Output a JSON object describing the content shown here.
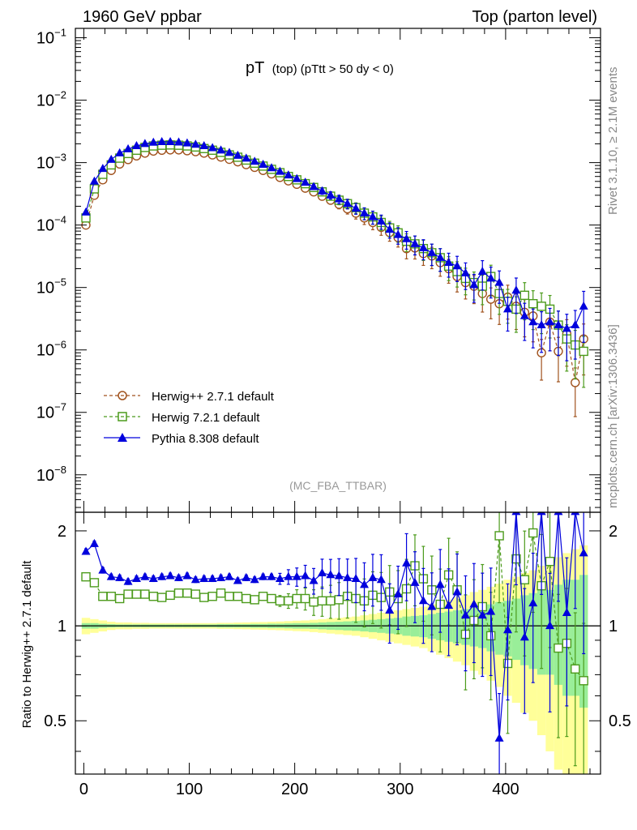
{
  "header": {
    "left": "1960 GeV ppbar",
    "right": "Top (parton level)"
  },
  "side_labels": {
    "rivet": "Rivet 3.1.10, ≥ 2.1M events",
    "mcplots": "mcplots.cern.ch [arXiv:1306.3436]"
  },
  "colors": {
    "herwig_pp": "#a0521d",
    "herwig7": "#4c9b1c",
    "pythia": "#0000dd",
    "band_inner": "#99ee99",
    "band_outer": "#ffff99"
  },
  "chart_data": [
    {
      "type": "line",
      "panel": "main",
      "title_main": "pT",
      "title_sub": "(top)  (pTtt > 50 dy < 0)",
      "watermark": "(MC_FBA_TTBAR)",
      "xlim": [
        -8,
        490
      ],
      "ylim_log10": [
        -8.6,
        -0.85
      ],
      "y_scale": "log",
      "y_tick_exponents": [
        -1,
        -2,
        -3,
        -4,
        -5,
        -6,
        -7,
        -8
      ],
      "legend_position": "bottom-left",
      "legend": [
        "Herwig++ 2.7.1 default",
        "Herwig 7.2.1 default",
        "Pythia 8.308 default"
      ],
      "x": [
        2,
        10,
        18,
        26,
        34,
        42,
        50,
        58,
        66,
        74,
        82,
        90,
        98,
        106,
        114,
        122,
        130,
        138,
        146,
        154,
        162,
        170,
        178,
        186,
        194,
        202,
        210,
        218,
        226,
        234,
        242,
        250,
        258,
        266,
        274,
        282,
        290,
        298,
        306,
        314,
        322,
        330,
        338,
        346,
        354,
        362,
        370,
        378,
        386,
        394,
        402,
        410,
        418,
        426,
        434,
        442,
        450,
        458,
        466,
        474
      ],
      "series": [
        {
          "name": "Herwig++ 2.7.1 default",
          "marker": "open-circle",
          "values": [
            0.0001,
            0.0003,
            0.00053,
            0.00075,
            0.00095,
            0.00112,
            0.00128,
            0.00142,
            0.00153,
            0.00158,
            0.0016,
            0.0016,
            0.00155,
            0.0015,
            0.00142,
            0.00133,
            0.00123,
            0.00113,
            0.00103,
            0.00093,
            0.00084,
            0.00075,
            0.00066,
            0.00058,
            0.00051,
            0.00045,
            0.00039,
            0.00034,
            0.00029,
            0.00025,
            0.000215,
            0.000182,
            0.000155,
            0.00013,
            0.00011,
            9.2e-05,
            7.6e-05,
            6.3e-05,
            4.2e-05,
            4.3e-05,
            3.5e-05,
            3.2e-05,
            2.5e-05,
            2e-05,
            1.5e-05,
            1.2e-05,
            1.05e-05,
            8e-06,
            6.5e-06,
            5.5e-06,
            7e-06,
            5e-06,
            4e-06,
            3.5e-06,
            9e-07,
            2.8e-06,
            9.5e-07,
            1.8e-06,
            3e-07,
            1.5e-06
          ]
        },
        {
          "name": "Herwig 7.2.1 default",
          "marker": "open-square",
          "values": [
            0.00013,
            0.00038,
            0.00065,
            0.00092,
            0.00118,
            0.0014,
            0.00158,
            0.00175,
            0.00185,
            0.0019,
            0.00192,
            0.0019,
            0.00185,
            0.00178,
            0.00168,
            0.00158,
            0.00146,
            0.00133,
            0.00122,
            0.0011,
            0.00098,
            0.00088,
            0.00078,
            0.00069,
            0.0006,
            0.00053,
            0.00046,
            0.0004,
            0.00034,
            0.00029,
            0.00025,
            0.00022,
            0.00019,
            0.000155,
            0.000135,
            0.00011,
            9e-05,
            7.5e-05,
            5.5e-05,
            5e-05,
            4.2e-05,
            3.6e-05,
            3e-05,
            2.2e-05,
            1.8e-05,
            1.4e-05,
            1.2e-05,
            1.05e-05,
            1.5e-05,
            8e-06,
            6e-06,
            4.5e-06,
            7.5e-06,
            5.5e-06,
            5e-06,
            4.5e-06,
            2.5e-06,
            1.5e-06,
            1.2e-06,
            9.5e-07
          ]
        },
        {
          "name": "Pythia 8.308 default",
          "marker": "filled-triangle",
          "values": [
            0.00016,
            0.0005,
            0.0008,
            0.00112,
            0.00142,
            0.00165,
            0.00185,
            0.002,
            0.0021,
            0.00215,
            0.00215,
            0.00212,
            0.00205,
            0.00195,
            0.00185,
            0.00172,
            0.00158,
            0.00144,
            0.0013,
            0.00117,
            0.00104,
            0.00093,
            0.00082,
            0.00072,
            0.00063,
            0.00055,
            0.00048,
            0.00041,
            0.00035,
            0.0003,
            0.00026,
            0.00022,
            0.000185,
            0.000155,
            0.000135,
            0.000115,
            8.5e-05,
            7e-05,
            6e-05,
            5e-05,
            4.3e-05,
            3.6e-05,
            3e-05,
            2.5e-05,
            2.2e-05,
            1.7e-05,
            1.1e-05,
            1.8e-05,
            1.4e-05,
            1.2e-05,
            4.5e-06,
            9e-06,
            3.5e-06,
            2.8e-06,
            2.5e-06,
            2.8e-06,
            2.5e-06,
            2.2e-06,
            2.5e-06,
            5e-06
          ]
        }
      ]
    },
    {
      "type": "line",
      "panel": "ratio",
      "ylabel": "Ratio to Herwig++ 2.7.1 default",
      "xlim": [
        -8,
        490
      ],
      "ylim_log10": [
        -0.47,
        0.36
      ],
      "y_scale": "log",
      "y_ticks": [
        0.5,
        1,
        2
      ],
      "x_ticks": [
        0,
        100,
        200,
        300,
        400
      ],
      "reference_line": 1,
      "x": [
        2,
        10,
        18,
        26,
        34,
        42,
        50,
        58,
        66,
        74,
        82,
        90,
        98,
        106,
        114,
        122,
        130,
        138,
        146,
        154,
        162,
        170,
        178,
        186,
        194,
        202,
        210,
        218,
        226,
        234,
        242,
        250,
        258,
        266,
        274,
        282,
        290,
        298,
        306,
        314,
        322,
        330,
        338,
        346,
        354,
        362,
        370,
        378,
        386,
        394,
        402,
        410,
        418,
        426,
        434,
        442,
        450,
        458,
        466,
        474
      ],
      "uncertainty_inner": [
        0.02,
        0.02,
        0.015,
        0.012,
        0.01,
        0.01,
        0.01,
        0.01,
        0.01,
        0.01,
        0.01,
        0.01,
        0.01,
        0.01,
        0.01,
        0.01,
        0.012,
        0.012,
        0.012,
        0.012,
        0.014,
        0.014,
        0.016,
        0.016,
        0.018,
        0.02,
        0.02,
        0.022,
        0.025,
        0.028,
        0.03,
        0.033,
        0.036,
        0.04,
        0.045,
        0.05,
        0.055,
        0.06,
        0.07,
        0.075,
        0.08,
        0.09,
        0.1,
        0.11,
        0.12,
        0.13,
        0.14,
        0.15,
        0.17,
        0.19,
        0.2,
        0.22,
        0.25,
        0.27,
        0.3,
        0.3,
        0.35,
        0.4,
        0.4,
        0.45
      ],
      "uncertainty_outer": [
        0.06,
        0.05,
        0.04,
        0.03,
        0.025,
        0.025,
        0.022,
        0.022,
        0.02,
        0.02,
        0.02,
        0.02,
        0.02,
        0.02,
        0.02,
        0.02,
        0.022,
        0.022,
        0.024,
        0.025,
        0.027,
        0.028,
        0.03,
        0.032,
        0.035,
        0.038,
        0.04,
        0.045,
        0.05,
        0.055,
        0.06,
        0.065,
        0.07,
        0.08,
        0.09,
        0.1,
        0.11,
        0.12,
        0.13,
        0.14,
        0.15,
        0.17,
        0.19,
        0.21,
        0.23,
        0.25,
        0.28,
        0.3,
        0.33,
        0.36,
        0.4,
        0.43,
        0.47,
        0.5,
        0.55,
        0.6,
        0.65,
        0.7,
        0.75,
        0.8
      ],
      "series": [
        {
          "name": "Herwig 7.2.1 default",
          "marker": "open-square",
          "values": [
            1.43,
            1.37,
            1.24,
            1.24,
            1.22,
            1.26,
            1.26,
            1.26,
            1.24,
            1.23,
            1.25,
            1.27,
            1.27,
            1.26,
            1.23,
            1.24,
            1.27,
            1.24,
            1.24,
            1.22,
            1.21,
            1.24,
            1.22,
            1.2,
            1.2,
            1.22,
            1.22,
            1.19,
            1.2,
            1.2,
            1.21,
            1.24,
            1.22,
            1.2,
            1.25,
            1.23,
            1.28,
            1.22,
            1.31,
            1.55,
            1.41,
            1.3,
            1.17,
            1.45,
            1.3,
            0.94,
            1.04,
            1.15,
            0.93,
            1.93,
            0.76,
            1.63,
            1.4,
            1.97,
            1.34,
            1.6,
            0.85,
            0.88,
            0.73,
            0.67
          ]
        },
        {
          "name": "Pythia 8.308 default",
          "marker": "filled-triangle",
          "values": [
            1.72,
            1.82,
            1.5,
            1.43,
            1.42,
            1.38,
            1.41,
            1.43,
            1.41,
            1.43,
            1.44,
            1.42,
            1.44,
            1.4,
            1.41,
            1.41,
            1.42,
            1.43,
            1.39,
            1.42,
            1.4,
            1.43,
            1.43,
            1.41,
            1.43,
            1.43,
            1.44,
            1.39,
            1.47,
            1.45,
            1.44,
            1.42,
            1.41,
            1.35,
            1.42,
            1.4,
            1.12,
            1.26,
            1.58,
            1.37,
            1.2,
            1.15,
            1.35,
            1.16,
            1.28,
            1.08,
            1.17,
            1.08,
            1.11,
            0.44,
            0.97,
            2.3,
            0.92,
            1.18,
            2.3,
            1.0,
            2.3,
            1.1,
            2.3,
            1.7
          ]
        }
      ]
    }
  ]
}
